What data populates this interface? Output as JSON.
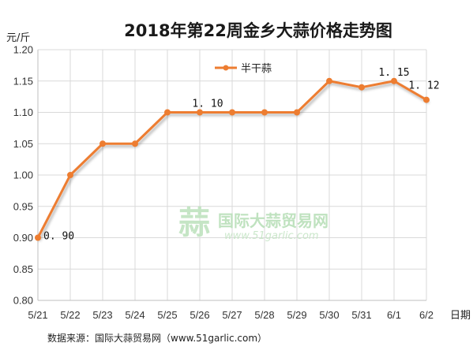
{
  "chart_data": {
    "type": "line",
    "title": "2018年第22周金乡大蒜价格走势图",
    "ylabel": "元/斤",
    "xlabel": "日期",
    "ylim": [
      0.8,
      1.2
    ],
    "yticks": [
      "0.80",
      "0.85",
      "0.90",
      "0.95",
      "1.00",
      "1.05",
      "1.10",
      "1.15",
      "1.20"
    ],
    "categories": [
      "5/21",
      "5/22",
      "5/23",
      "5/24",
      "5/25",
      "5/26",
      "5/27",
      "5/28",
      "5/29",
      "5/30",
      "5/31",
      "6/1",
      "6/2"
    ],
    "series": [
      {
        "name": "半干蒜",
        "color": "#ED7D31",
        "values": [
          0.9,
          1.0,
          1.05,
          1.05,
          1.1,
          1.1,
          1.1,
          1.1,
          1.1,
          1.15,
          1.14,
          1.15,
          1.12
        ]
      }
    ],
    "data_labels": [
      {
        "index": 0,
        "text": "0. 90"
      },
      {
        "index": 5,
        "text": "1. 10"
      },
      {
        "index": 11,
        "text": "1. 15"
      },
      {
        "index": 12,
        "text": "1. 12"
      }
    ],
    "grid": true,
    "legend": "top-center"
  },
  "watermark": {
    "logo_char": "蒜",
    "name": "国际大蒜贸易网",
    "url": "www.51garlic.com"
  },
  "source_text": "数据来源：国际大蒜贸易网（www.51garlic.com）"
}
